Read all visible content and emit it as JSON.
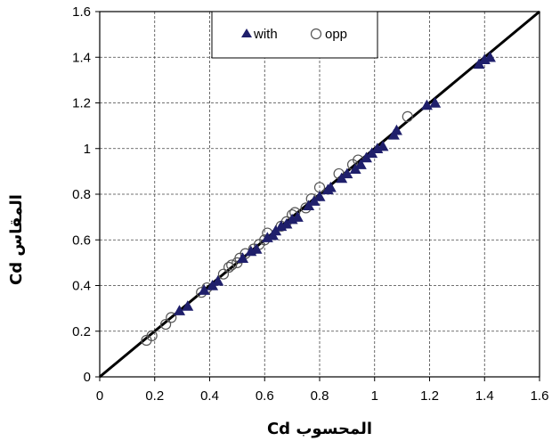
{
  "chart_data": {
    "type": "scatter",
    "title": "",
    "xlabel": "Cd المحسوب",
    "ylabel": "Cd المقاس",
    "xlim": [
      0,
      1.6
    ],
    "ylim": [
      0,
      1.6
    ],
    "x_ticks": [
      "0",
      "0.2",
      "0.4",
      "0.6",
      "0.8",
      "1",
      "1.2",
      "1.4",
      "1.6"
    ],
    "y_ticks": [
      "0",
      "0.2",
      "0.4",
      "0.6",
      "0.8",
      "1",
      "1.2",
      "1.4",
      "1.6"
    ],
    "grid": true,
    "legend_position": "top-center",
    "reference_line": {
      "x": [
        0,
        1.6
      ],
      "y": [
        0,
        1.6
      ]
    },
    "colors": {
      "with": "#1f1f6b",
      "opp": "#555555",
      "line": "#000000"
    },
    "series": [
      {
        "name": "with",
        "marker": "triangle",
        "points": [
          [
            0.29,
            0.29
          ],
          [
            0.32,
            0.31
          ],
          [
            0.38,
            0.38
          ],
          [
            0.41,
            0.4
          ],
          [
            0.43,
            0.42
          ],
          [
            0.52,
            0.52
          ],
          [
            0.55,
            0.55
          ],
          [
            0.57,
            0.56
          ],
          [
            0.61,
            0.61
          ],
          [
            0.63,
            0.62
          ],
          [
            0.64,
            0.64
          ],
          [
            0.66,
            0.66
          ],
          [
            0.68,
            0.67
          ],
          [
            0.7,
            0.69
          ],
          [
            0.72,
            0.7
          ],
          [
            0.76,
            0.75
          ],
          [
            0.78,
            0.77
          ],
          [
            0.8,
            0.79
          ],
          [
            0.83,
            0.82
          ],
          [
            0.84,
            0.83
          ],
          [
            0.88,
            0.87
          ],
          [
            0.9,
            0.89
          ],
          [
            0.93,
            0.91
          ],
          [
            0.95,
            0.93
          ],
          [
            0.97,
            0.96
          ],
          [
            0.99,
            0.98
          ],
          [
            1.01,
            1.0
          ],
          [
            1.03,
            1.01
          ],
          [
            1.07,
            1.06
          ],
          [
            1.08,
            1.08
          ],
          [
            1.19,
            1.19
          ],
          [
            1.22,
            1.2
          ],
          [
            1.38,
            1.37
          ],
          [
            1.4,
            1.39
          ],
          [
            1.42,
            1.4
          ]
        ]
      },
      {
        "name": "opp",
        "marker": "circle",
        "points": [
          [
            0.17,
            0.16
          ],
          [
            0.19,
            0.18
          ],
          [
            0.24,
            0.23
          ],
          [
            0.26,
            0.26
          ],
          [
            0.37,
            0.37
          ],
          [
            0.39,
            0.39
          ],
          [
            0.45,
            0.45
          ],
          [
            0.47,
            0.48
          ],
          [
            0.48,
            0.49
          ],
          [
            0.5,
            0.5
          ],
          [
            0.51,
            0.52
          ],
          [
            0.53,
            0.54
          ],
          [
            0.56,
            0.56
          ],
          [
            0.58,
            0.58
          ],
          [
            0.6,
            0.6
          ],
          [
            0.61,
            0.63
          ],
          [
            0.66,
            0.66
          ],
          [
            0.68,
            0.68
          ],
          [
            0.7,
            0.71
          ],
          [
            0.71,
            0.72
          ],
          [
            0.75,
            0.74
          ],
          [
            0.77,
            0.78
          ],
          [
            0.8,
            0.83
          ],
          [
            0.87,
            0.89
          ],
          [
            0.92,
            0.93
          ],
          [
            0.94,
            0.95
          ],
          [
            1.12,
            1.14
          ]
        ]
      }
    ]
  }
}
